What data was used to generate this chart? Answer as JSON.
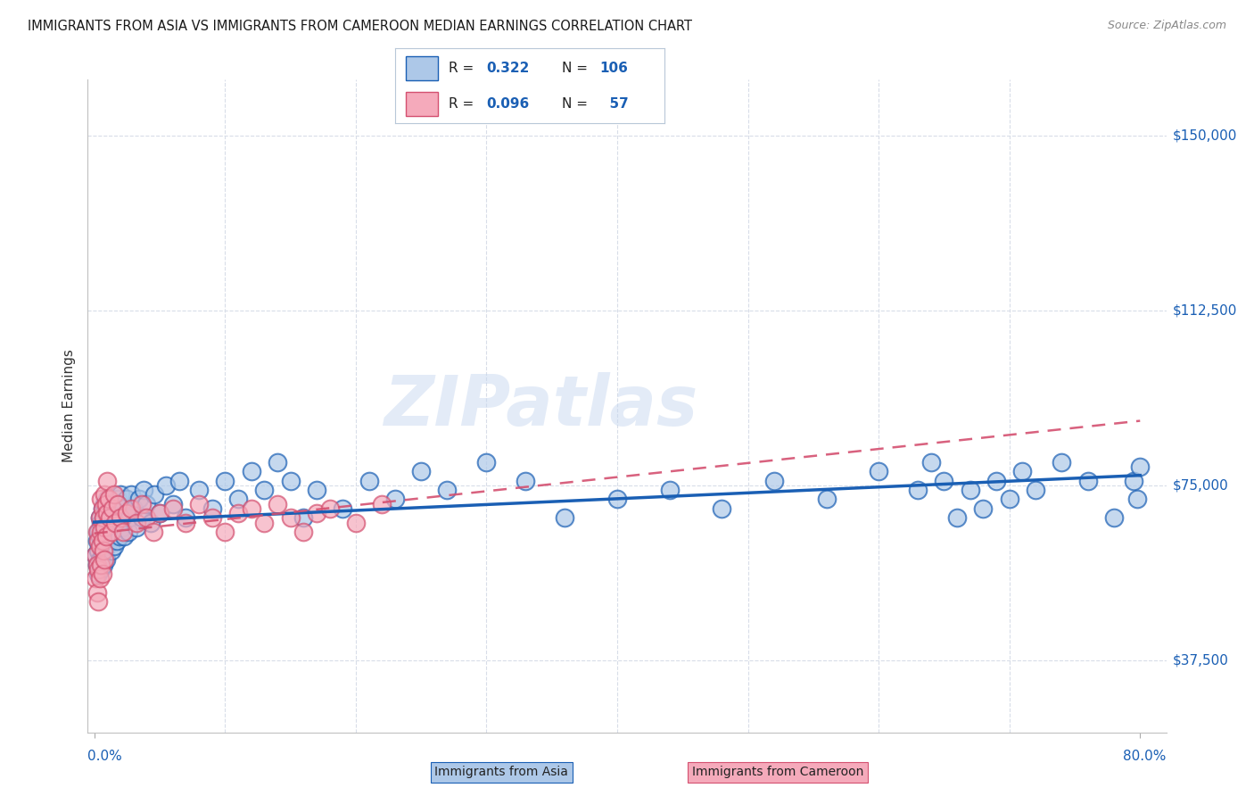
{
  "title": "IMMIGRANTS FROM ASIA VS IMMIGRANTS FROM CAMEROON MEDIAN EARNINGS CORRELATION CHART",
  "source": "Source: ZipAtlas.com",
  "ylabel": "Median Earnings",
  "xlim": [
    -0.005,
    0.82
  ],
  "ylim": [
    22000,
    162000
  ],
  "ytick_vals": [
    37500,
    75000,
    112500,
    150000
  ],
  "yticklabels": [
    "$37,500",
    "$75,000",
    "$112,500",
    "$150,000"
  ],
  "xtick_vals": [
    0.0,
    0.8
  ],
  "xticklabels": [
    "0.0%",
    "80.0%"
  ],
  "legend_asia_R": "0.322",
  "legend_asia_N": "106",
  "legend_cam_R": "0.096",
  "legend_cam_N": "57",
  "color_asia": "#adc8e8",
  "color_cam": "#f5aabb",
  "line_asia_color": "#1a5fb4",
  "line_cam_color": "#d45070",
  "watermark": "ZIPatlas",
  "asia_x": [
    0.001,
    0.002,
    0.002,
    0.003,
    0.003,
    0.003,
    0.004,
    0.004,
    0.004,
    0.005,
    0.005,
    0.005,
    0.006,
    0.006,
    0.006,
    0.007,
    0.007,
    0.007,
    0.008,
    0.008,
    0.008,
    0.009,
    0.009,
    0.009,
    0.01,
    0.01,
    0.01,
    0.011,
    0.011,
    0.012,
    0.012,
    0.013,
    0.013,
    0.014,
    0.014,
    0.015,
    0.015,
    0.016,
    0.016,
    0.017,
    0.018,
    0.018,
    0.019,
    0.02,
    0.02,
    0.021,
    0.022,
    0.023,
    0.024,
    0.025,
    0.026,
    0.027,
    0.028,
    0.03,
    0.032,
    0.034,
    0.036,
    0.038,
    0.04,
    0.043,
    0.046,
    0.05,
    0.055,
    0.06,
    0.065,
    0.07,
    0.08,
    0.09,
    0.1,
    0.11,
    0.12,
    0.13,
    0.14,
    0.15,
    0.16,
    0.17,
    0.19,
    0.21,
    0.23,
    0.25,
    0.27,
    0.3,
    0.33,
    0.36,
    0.4,
    0.44,
    0.48,
    0.52,
    0.56,
    0.6,
    0.63,
    0.64,
    0.65,
    0.66,
    0.67,
    0.68,
    0.69,
    0.7,
    0.71,
    0.72,
    0.74,
    0.76,
    0.78,
    0.795,
    0.798,
    0.8
  ],
  "asia_y": [
    60000,
    58000,
    63000,
    56000,
    61000,
    65000,
    59000,
    64000,
    68000,
    57000,
    62000,
    67000,
    60000,
    65000,
    70000,
    58000,
    63000,
    68000,
    61000,
    66000,
    71000,
    59000,
    64000,
    69000,
    62000,
    67000,
    72000,
    65000,
    70000,
    63000,
    68000,
    61000,
    66000,
    64000,
    69000,
    62000,
    67000,
    65000,
    70000,
    63000,
    67000,
    72000,
    64000,
    68000,
    73000,
    66000,
    70000,
    64000,
    69000,
    72000,
    65000,
    68000,
    73000,
    70000,
    66000,
    72000,
    68000,
    74000,
    71000,
    67000,
    73000,
    69000,
    75000,
    71000,
    76000,
    68000,
    74000,
    70000,
    76000,
    72000,
    78000,
    74000,
    80000,
    76000,
    68000,
    74000,
    70000,
    76000,
    72000,
    78000,
    74000,
    80000,
    76000,
    68000,
    72000,
    74000,
    70000,
    76000,
    72000,
    78000,
    74000,
    80000,
    76000,
    68000,
    74000,
    70000,
    76000,
    72000,
    78000,
    74000,
    80000,
    76000,
    68000,
    76000,
    72000,
    79000
  ],
  "cam_x": [
    0.001,
    0.001,
    0.002,
    0.002,
    0.002,
    0.003,
    0.003,
    0.003,
    0.004,
    0.004,
    0.004,
    0.005,
    0.005,
    0.005,
    0.006,
    0.006,
    0.006,
    0.007,
    0.007,
    0.008,
    0.008,
    0.008,
    0.009,
    0.009,
    0.01,
    0.01,
    0.011,
    0.012,
    0.013,
    0.014,
    0.015,
    0.016,
    0.018,
    0.02,
    0.022,
    0.025,
    0.028,
    0.032,
    0.036,
    0.04,
    0.045,
    0.05,
    0.06,
    0.07,
    0.08,
    0.09,
    0.1,
    0.11,
    0.12,
    0.13,
    0.14,
    0.15,
    0.16,
    0.17,
    0.18,
    0.2,
    0.22
  ],
  "cam_y": [
    60000,
    55000,
    65000,
    58000,
    52000,
    63000,
    57000,
    50000,
    68000,
    62000,
    55000,
    72000,
    65000,
    58000,
    70000,
    63000,
    56000,
    68000,
    61000,
    73000,
    66000,
    59000,
    71000,
    64000,
    76000,
    69000,
    72000,
    68000,
    65000,
    70000,
    73000,
    67000,
    71000,
    68000,
    65000,
    69000,
    70000,
    67000,
    71000,
    68000,
    65000,
    69000,
    70000,
    67000,
    71000,
    68000,
    65000,
    69000,
    70000,
    67000,
    71000,
    68000,
    65000,
    69000,
    70000,
    67000,
    71000
  ]
}
